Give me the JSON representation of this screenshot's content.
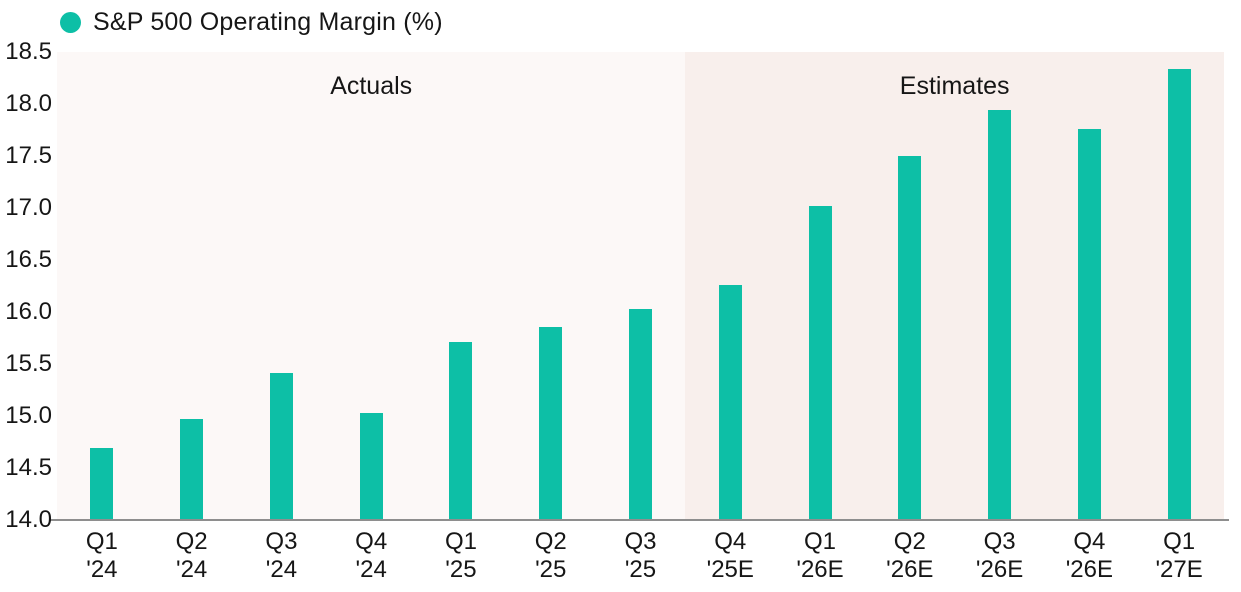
{
  "legend": {
    "label": "S&P 500 Operating Margin (%)",
    "dot_icon": "circle-dot-icon",
    "dot_color": "#0dbfa6"
  },
  "colors": {
    "bar": "#0dbfa6",
    "actuals_background": "#fcf8f7",
    "estimates_background": "#f8efec",
    "axis_line": "#8e8e8e",
    "text": "#161616",
    "page_background": "#ffffff"
  },
  "chart_data": {
    "type": "bar",
    "title": "S&P 500 Operating Margin (%)",
    "xlabel": "",
    "ylabel": "",
    "ylim": [
      14.0,
      18.5
    ],
    "ytick_step": 0.5,
    "ytick_labels": [
      "14.0",
      "14.5",
      "15.0",
      "15.5",
      "16.0",
      "16.5",
      "17.0",
      "17.5",
      "18.0",
      "18.5"
    ],
    "grid": false,
    "legend_position": "top-left",
    "categories": [
      {
        "line1": "Q1",
        "line2": "'24"
      },
      {
        "line1": "Q2",
        "line2": "'24"
      },
      {
        "line1": "Q3",
        "line2": "'24"
      },
      {
        "line1": "Q4",
        "line2": "'24"
      },
      {
        "line1": "Q1",
        "line2": "'25"
      },
      {
        "line1": "Q2",
        "line2": "'25"
      },
      {
        "line1": "Q3",
        "line2": "'25"
      },
      {
        "line1": "Q4",
        "line2": "'25E"
      },
      {
        "line1": "Q1",
        "line2": "'26E"
      },
      {
        "line1": "Q2",
        "line2": "'26E"
      },
      {
        "line1": "Q3",
        "line2": "'26E"
      },
      {
        "line1": "Q4",
        "line2": "'26E"
      },
      {
        "line1": "Q1",
        "line2": "'27E"
      }
    ],
    "values": [
      14.69,
      14.97,
      15.41,
      15.03,
      15.71,
      15.86,
      16.03,
      16.26,
      17.02,
      17.5,
      17.94,
      17.76,
      18.34
    ],
    "sections": [
      {
        "label": "Actuals",
        "start_index": 0,
        "end_index": 6
      },
      {
        "label": "Estimates",
        "start_index": 7,
        "end_index": 12
      }
    ]
  }
}
